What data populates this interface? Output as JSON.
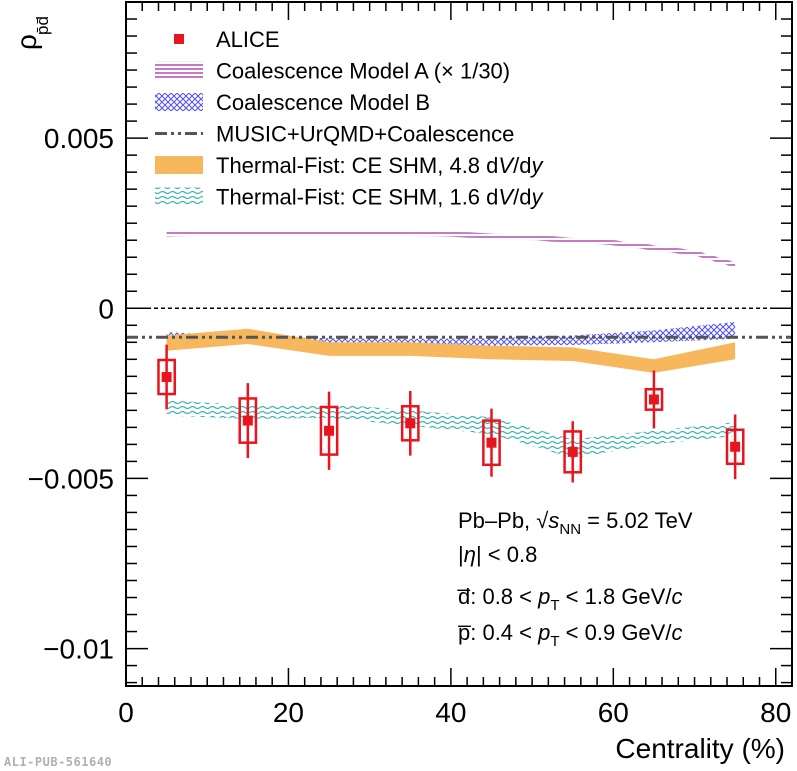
{
  "chart_data": {
    "type": "scatter",
    "title": "",
    "xlabel": "Centrality (%)",
    "ylabel": "ρ_p̄d̄",
    "xlim": [
      0,
      82
    ],
    "ylim": [
      -0.0111,
      0.009
    ],
    "xticks": [
      0,
      20,
      40,
      60,
      80
    ],
    "xtick_labels": [
      "0",
      "20",
      "40",
      "60",
      "80"
    ],
    "yticks": [
      0.005,
      0,
      -0.005,
      -0.01
    ],
    "ytick_labels": [
      "0.005",
      "0",
      "−0.005",
      "−0.01"
    ],
    "zero_line": true,
    "legend_placement": "top-left",
    "series": [
      {
        "name": "ALICE",
        "legend_label": "ALICE",
        "style": "markers-with-errors-and-syst-boxes",
        "color": "#e8141e",
        "x": [
          5,
          15,
          25,
          35,
          45,
          55,
          65,
          75
        ],
        "y": [
          -0.00202,
          -0.0033,
          -0.0036,
          -0.00338,
          -0.00395,
          -0.00422,
          -0.00268,
          -0.00407
        ],
        "stat_err": [
          0.00095,
          0.0011,
          0.00115,
          0.00095,
          0.001,
          0.0009,
          0.00085,
          0.00095
        ],
        "syst_err": [
          0.0005,
          0.00065,
          0.0007,
          0.0005,
          0.00065,
          0.0006,
          0.0003,
          0.0005
        ],
        "syst_box_halfwidth": 1.0
      },
      {
        "name": "Coalescence Model A",
        "legend_label": "Coalescence Model A (× 1/30)",
        "style": "hatched-band",
        "color": "#a020a0",
        "x": [
          5,
          10,
          20,
          30,
          40,
          50,
          60,
          70,
          75
        ],
        "y_low": [
          0.0021,
          0.00213,
          0.00215,
          0.00214,
          0.0021,
          0.002,
          0.00185,
          0.00155,
          0.0012
        ],
        "y_high": [
          0.00225,
          0.00228,
          0.0023,
          0.00229,
          0.00225,
          0.00215,
          0.002,
          0.0017,
          0.00135
        ]
      },
      {
        "name": "Coalescence Model B",
        "legend_label": "Coalescence Model B",
        "style": "crosshatch-band",
        "color": "#5555e6",
        "x": [
          5,
          15,
          25,
          35,
          45,
          55,
          65,
          75
        ],
        "y_low": [
          -0.00095,
          -0.00105,
          -0.0011,
          -0.00112,
          -0.0011,
          -0.00108,
          -0.001,
          -0.0009
        ],
        "y_high": [
          -0.0007,
          -0.00082,
          -0.00088,
          -0.0009,
          -0.00088,
          -0.0008,
          -0.00065,
          -0.0004
        ]
      },
      {
        "name": "MUSIC+UrQMD+Coalescence",
        "legend_label": "MUSIC+UrQMD+Coalescence",
        "style": "dash-dot-dot-line",
        "color": "#555555",
        "x": [
          0,
          82
        ],
        "y": [
          -0.00085,
          -0.00085
        ]
      },
      {
        "name": "Thermal-Fist CE SHM 4.8",
        "legend_label": "Thermal-Fist: CE SHM, 4.8 dV/dy",
        "style": "filled-band",
        "color": "#f7b75c",
        "x": [
          5,
          15,
          25,
          35,
          45,
          55,
          65,
          75
        ],
        "y_low": [
          -0.00125,
          -0.00105,
          -0.0014,
          -0.0014,
          -0.0015,
          -0.00155,
          -0.0019,
          -0.0015
        ],
        "y_high": [
          -0.0008,
          -0.0006,
          -0.001,
          -0.001,
          -0.0011,
          -0.00115,
          -0.0015,
          -0.001
        ]
      },
      {
        "name": "Thermal-Fist CE SHM 1.6",
        "legend_label": "Thermal-Fist: CE SHM, 1.6 dV/dy",
        "style": "wavy-hatched-band",
        "color": "#3fb6b2",
        "x": [
          5,
          15,
          25,
          35,
          45,
          55,
          65,
          75
        ],
        "y_low": [
          -0.00315,
          -0.00325,
          -0.00322,
          -0.00345,
          -0.0037,
          -0.0044,
          -0.004,
          -0.00375
        ],
        "y_high": [
          -0.0027,
          -0.00285,
          -0.0028,
          -0.003,
          -0.0032,
          -0.00385,
          -0.0036,
          -0.00335
        ]
      }
    ],
    "annotations": [
      "Pb–Pb, √s_NN = 5.02 TeV",
      "|η| < 0.8",
      "d̅: 0.8 < p_T < 1.8 GeV/c",
      "p̅: 0.4 < p_T < 0.9 GeV/c"
    ]
  },
  "watermark": "ALI-PUB-561640"
}
